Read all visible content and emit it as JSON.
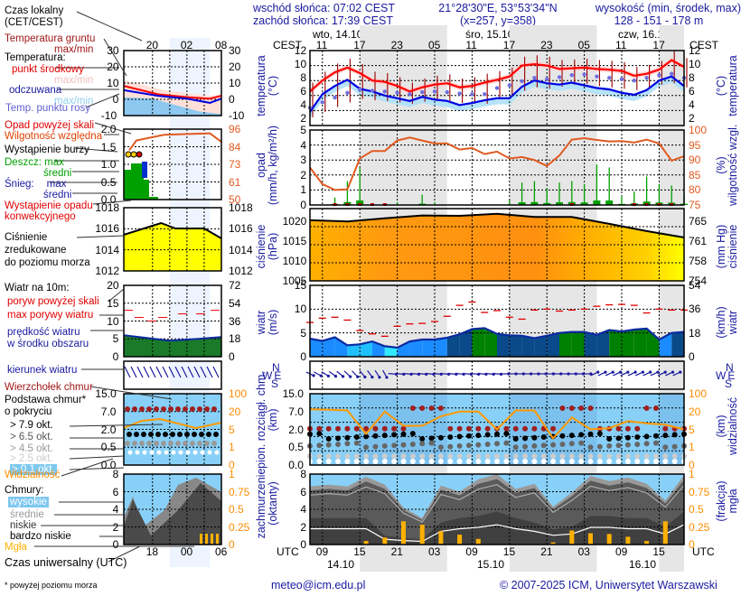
{
  "header": {
    "sunrise": "wschód słońca: 07:02 CEST",
    "sunset": "zachód słońca: 17:39 CEST",
    "coords": "21°28'30\"E, 53°53'34\"N",
    "grid": "(x=257,  y=358)",
    "elev_title": "wysokość (min, środek, max)",
    "elev_values": "128 - 151 - 178 m"
  },
  "days": [
    {
      "label": "wto, 14.10"
    },
    {
      "label": "śro, 15.10"
    },
    {
      "label": "czw, 16.10"
    }
  ],
  "time_axis": {
    "local_label": "CEST",
    "utc_label": "UTC",
    "local_ticks": [
      "11",
      "17",
      "23",
      "05",
      "11",
      "17",
      "23",
      "05",
      "11",
      "17"
    ],
    "utc_ticks": [
      "09",
      "15",
      "21",
      "03",
      "09",
      "15",
      "21",
      "03",
      "09",
      "15"
    ],
    "utc_dates": [
      "14.10",
      "15.10",
      "16.10"
    ]
  },
  "legend": {
    "local_time": "Czas lokalny",
    "local_time2": "(CET/CEST)",
    "ground_temp": "Temperatura gruntu",
    "ground_temp2": "max/min",
    "temperature": "Temperatura:",
    "midpoint": "punkt środkowy",
    "maxmin1": "max/min",
    "feels": "odczuwana",
    "maxmin2": "max/min",
    "dew": "Temp. punktu rosy",
    "precip_above": "Opad powyżej skali",
    "humidity": "Wilgotność względna",
    "storm": "Wystąpienie burzy",
    "rain": "Deszcz:",
    "rain_max": "max",
    "rain_avg": "średni",
    "snow": "Śnieg:",
    "snow_max": "max",
    "snow_avg": "średni",
    "convective": "Wystąpienie opadu",
    "convective2": "konwekcyjnego",
    "pressure": "Ciśnienie",
    "pressure2": "zredukowane",
    "pressure3": "do poziomu morza",
    "wind10": "Wiatr na 10m:",
    "gust_above": "poryw powyżej skali",
    "gust_max": "max porywy wiatru",
    "wind_speed": "prędkość wiatru",
    "wind_speed2": "w środku obszaru",
    "wind_dir": "kierunek wiatru",
    "cloud_top": "Wierzchołek chmur",
    "cloud_base": "Podstawa chmur*",
    "cloud_base2": "o pokryciu",
    "okt79": "> 7.9 okt.",
    "okt65": "> 6.5 okt.",
    "okt45": "> 4.5 okt.",
    "okt25": "> 2.5 okt.",
    "okt01": "> 0.1 okt.",
    "visibility": "Widzialność",
    "clouds": "Chmury:",
    "high": "wysokie",
    "mid": "średnie",
    "low": "niskie",
    "vlow": "bardzo niskie",
    "fog": "Mgła",
    "utc_time": "Czas uniwersalny (UTC)",
    "footnote": "* powyżej poziomu morza"
  },
  "legend_axes": {
    "local_ticks": [
      "20",
      "02",
      "08"
    ],
    "utc_ticks": [
      "18",
      "00",
      "06"
    ],
    "temp": [
      "30",
      "20",
      "10",
      "0",
      "-10"
    ],
    "precip": [
      "2.0",
      "1.5",
      "1.0",
      "0.5",
      "0.0"
    ],
    "humid": [
      "96",
      "84",
      "73",
      "61",
      "50"
    ],
    "press": [
      "1018",
      "1016",
      "1014",
      "1012"
    ],
    "wind_ms": [
      "20",
      "15",
      "10",
      "5",
      "0"
    ],
    "wind_kmh": [
      "72",
      "54",
      "36",
      "18",
      "0"
    ],
    "cloudh": [
      "15.0",
      "7.0",
      "2.0",
      "0.5",
      "0.0"
    ],
    "vis": [
      "100",
      "20",
      "5",
      "1",
      "0"
    ],
    "okt": [
      "8",
      "6",
      "4",
      "2",
      "0"
    ],
    "fog": [
      "1",
      "0.75",
      "0.5",
      "0.25",
      "0"
    ]
  },
  "panels": {
    "temperature": {
      "label": "temperatura",
      "unit": "(°C)",
      "ticks": [
        "12",
        "10",
        "8",
        "6",
        "4",
        "2"
      ]
    },
    "precip": {
      "label": "opad",
      "unit": "(mm/h, kg/m²/h)",
      "ticks": [
        "5",
        "4",
        "3",
        "2",
        "1",
        "0"
      ],
      "right_label": "wilgotność wzgl.",
      "right_unit": "(%)",
      "right_ticks": [
        "100",
        "95",
        "90",
        "85",
        "80",
        "75"
      ]
    },
    "pressure": {
      "label": "ciśnienie",
      "unit": "(hPa)",
      "ticks": [
        "1020",
        "1015",
        "1010",
        "1005"
      ],
      "right_label": "ciśnienie",
      "right_unit": "(mm Hg)",
      "right_ticks": [
        "765",
        "761",
        "758",
        "754"
      ]
    },
    "wind": {
      "label": "wiatr",
      "unit": "(m/s)",
      "ticks": [
        "15",
        "10",
        "5",
        "0"
      ],
      "right_label": "wiatr",
      "right_unit": "(km/h)",
      "right_ticks": [
        "54",
        "36",
        "18",
        "0"
      ]
    },
    "compass": {
      "n": "N",
      "w": "W",
      "e": "E",
      "s": "S"
    },
    "clouds_vert": {
      "label": "pion. rozciągł. chm.",
      "unit": "(km)",
      "ticks": [
        "15.0",
        "7.0",
        "2.0",
        "0.5",
        "0.0"
      ],
      "right_label": "widzialność",
      "right_unit": "(km)",
      "right_ticks": [
        "100",
        "20",
        "5",
        "1",
        "0"
      ]
    },
    "cloud_cover": {
      "label": "zachmurzenie",
      "unit": "(oktanty)",
      "ticks": [
        "8",
        "6",
        "4",
        "2",
        "0"
      ],
      "right_label": "mgła",
      "right_unit": "(frakcja)",
      "right_ticks": [
        "1",
        "0.75",
        "0.5",
        "0.25",
        "0"
      ]
    }
  },
  "footer": {
    "email": "meteo@icm.edu.pl",
    "copyright": "© 2007-2025 ICM, Uniwersytet Warszawski"
  },
  "colors": {
    "temp_line": "#ff0000",
    "feels_line": "#0000e0",
    "dew_points": "#7070e0",
    "ground_temp": "#a01010",
    "humidity": "#e05a20",
    "rain": "#00a000",
    "pressure_fill": "#ffa500",
    "gust": "#e00000",
    "wind_fill": "#1a8cff",
    "visibility": "#ff9900",
    "night_shade": "#e6e6e6",
    "sky": "#88d0f8",
    "fog": "#ffb000"
  },
  "chart_data": [
    {
      "type": "line",
      "title": "temperatura (°C)",
      "x_unit": "hours from 14.10 00 UTC",
      "x": [
        7,
        9,
        11,
        13,
        15,
        17,
        19,
        21,
        23,
        25,
        27,
        29,
        31,
        33,
        35,
        37,
        39,
        41,
        43,
        45,
        47,
        49,
        51,
        53,
        55,
        57,
        59,
        61,
        63,
        65,
        67
      ],
      "ylim": [
        1,
        12
      ],
      "series": [
        {
          "name": "temperatura",
          "values": [
            6.0,
            7.6,
            8.8,
            9.5,
            8.7,
            7.6,
            7.4,
            6.8,
            6.0,
            6.6,
            7.0,
            7.2,
            6.6,
            6.8,
            7.3,
            7.7,
            8.2,
            9.8,
            10.0,
            9.8,
            9.3,
            9.4,
            9.5,
            9.3,
            9.2,
            9.0,
            8.3,
            8.6,
            9.2,
            10.6,
            9.6
          ]
        },
        {
          "name": "temperatura odczuwana",
          "values": [
            3.0,
            5.6,
            6.8,
            7.7,
            6.4,
            6.0,
            5.4,
            5.0,
            4.6,
            5.2,
            4.8,
            4.6,
            4.0,
            4.3,
            4.7,
            5.0,
            5.0,
            6.7,
            7.6,
            7.2,
            7.0,
            7.3,
            6.9,
            6.5,
            6.3,
            5.8,
            5.5,
            6.2,
            7.6,
            8.2,
            6.8
          ]
        },
        {
          "name": "temperatura punktu rosy",
          "values": [
            3.6,
            4.4,
            5.1,
            5.8,
            6.3,
            6.1,
            6.0,
            5.8,
            5.6,
            5.9,
            6.0,
            5.9,
            5.7,
            5.6,
            5.6,
            6.5,
            6.9,
            7.5,
            8.0,
            7.8,
            8.1,
            8.4,
            8.5,
            8.2,
            8.0,
            7.8,
            7.6,
            8.0,
            8.4,
            8.6,
            8.0
          ]
        }
      ]
    },
    {
      "type": "line",
      "title": "opad / wilgotność wzgl.",
      "x": [
        7,
        9,
        11,
        13,
        15,
        17,
        19,
        21,
        23,
        25,
        27,
        29,
        31,
        33,
        35,
        37,
        39,
        41,
        43,
        45,
        47,
        49,
        51,
        53,
        55,
        57,
        59,
        61,
        63,
        65,
        67
      ],
      "series": [
        {
          "name": "wilgotność wzgl. (%)",
          "ylim": [
            75,
            100
          ],
          "values": [
            87.5,
            82,
            80,
            80.2,
            90.5,
            93,
            93,
            96.5,
            97.5,
            96.5,
            95.5,
            95.5,
            93.5,
            94,
            92,
            92.8,
            90.5,
            91,
            90,
            88,
            91.5,
            96.8,
            97.3,
            96.7,
            96.2,
            96.3,
            95.8,
            96.8,
            95.5,
            89.8,
            91.3
          ]
        },
        {
          "name": "opad max (mm/h)",
          "ylim": [
            0,
            5
          ],
          "values": [
            0,
            0,
            0.5,
            1.6,
            2.5,
            0.1,
            0,
            0.2,
            0,
            0.7,
            0.2,
            0,
            0,
            0,
            0,
            0,
            0.3,
            1.5,
            1.6,
            1.1,
            1.5,
            1.6,
            1.4,
            2.7,
            2.5,
            0.6,
            0.9,
            1.9,
            1.4,
            1.3,
            0.7
          ]
        }
      ]
    },
    {
      "type": "area",
      "title": "ciśnienie (hPa)",
      "x": [
        7,
        13,
        19,
        25,
        31,
        37,
        43,
        49,
        55,
        61,
        67
      ],
      "ylim": [
        1005,
        1023
      ],
      "values": [
        1020.1,
        1019.8,
        1020.6,
        1021.3,
        1021.2,
        1021.7,
        1020.9,
        1020.9,
        1019.2,
        1017.4,
        1015.8
      ]
    },
    {
      "type": "line",
      "title": "wiatr (m/s)",
      "x": [
        7,
        9,
        11,
        13,
        15,
        17,
        19,
        21,
        23,
        25,
        27,
        29,
        31,
        33,
        35,
        37,
        39,
        41,
        43,
        45,
        47,
        49,
        51,
        53,
        55,
        57,
        59,
        61,
        63,
        65,
        67
      ],
      "ylim": [
        0,
        15
      ],
      "series": [
        {
          "name": "prędkość wiatru",
          "values": [
            3.8,
            3.3,
            4.1,
            2.4,
            2.6,
            3.2,
            2.2,
            1.9,
            3.2,
            3.6,
            3.6,
            4.0,
            4.7,
            5.8,
            6.0,
            4.8,
            4.5,
            4.4,
            3.9,
            4.4,
            5.0,
            5.2,
            5.2,
            4.6,
            5.6,
            5.3,
            5.7,
            5.9,
            3.6,
            5.0,
            5.2
          ]
        },
        {
          "name": "max porywy wiatru",
          "values": [
            7.2,
            8.1,
            8.3,
            7.7,
            5.5,
            4.8,
            4.3,
            6.4,
            6.9,
            7.0,
            7.4,
            8.5,
            10.8,
            11.5,
            9.3,
            9.7,
            8.3,
            7.9,
            9.8,
            10.0,
            9.6,
            9.8,
            10.0,
            10.6,
            10.9,
            11.0,
            10.8,
            9.2,
            10.0,
            9.8,
            9.8
          ]
        }
      ]
    },
    {
      "type": "line",
      "title": "widzialność (km)",
      "x": [
        7,
        10,
        13,
        16,
        19,
        22,
        25,
        28,
        31,
        34,
        37,
        40,
        43,
        46,
        49,
        52,
        55,
        58,
        61,
        64,
        67
      ],
      "ylim": [
        0,
        100
      ],
      "values": [
        30,
        28,
        25,
        4,
        20,
        8,
        8,
        16,
        20,
        20,
        5,
        25,
        25,
        3,
        15,
        5,
        6,
        12,
        10,
        9,
        5
      ]
    },
    {
      "type": "area",
      "title": "zachmurzenie (oktanty) / mgła (frakcja)",
      "x": [
        7,
        10,
        13,
        16,
        19,
        22,
        25,
        28,
        31,
        34,
        37,
        40,
        43,
        46,
        49,
        52,
        55,
        58,
        61,
        64,
        67
      ],
      "ylim": [
        0,
        8
      ],
      "series": [
        {
          "name": "chmury razem",
          "values": [
            6.6,
            6.8,
            6.6,
            7.7,
            6.8,
            4.2,
            3.0,
            6.7,
            6.0,
            7.4,
            8.0,
            6.3,
            6.9,
            4.3,
            5.9,
            7.8,
            7.2,
            7.6,
            6.9,
            5.0,
            7.9
          ]
        },
        {
          "name": "chmury niskie",
          "values": [
            6.0,
            6.0,
            6.0,
            6.0,
            2.0,
            1.5,
            1.2,
            5.0,
            6.0,
            6.5,
            7.5,
            6.0,
            5.0,
            3.5,
            4.0,
            6.5,
            6.5,
            6.0,
            6.0,
            4.0,
            7.5
          ]
        },
        {
          "name": "mgła",
          "values": [
            0,
            0,
            0,
            0.05,
            0.1,
            0.33,
            0.28,
            0.19,
            0.14,
            0.08,
            0,
            0,
            0,
            0.03,
            0.2,
            0.16,
            0.15,
            0.11,
            0.05,
            0.33,
            0
          ]
        }
      ]
    }
  ]
}
